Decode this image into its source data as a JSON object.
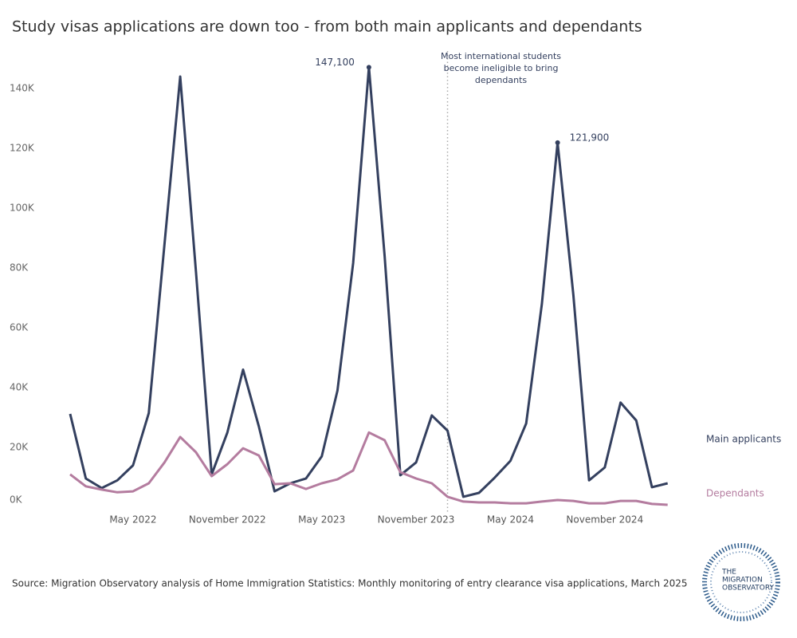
{
  "chart_data": {
    "type": "line",
    "title": "Study visas applications are down too - from both main applicants and dependants",
    "source": "Source: Migration Observatory analysis of Home Immigration Statistics: Monthly monitoring of entry clearance visa applications, March 2025",
    "logo": [
      "THE",
      "MIGRATION",
      "OBSERVATORY"
    ],
    "annotation": [
      "Most international students",
      "become ineligible to bring",
      "dependants"
    ],
    "categories": [
      null,
      null,
      null,
      null,
      "May 2022",
      null,
      null,
      null,
      null,
      null,
      "November 2022",
      null,
      null,
      null,
      null,
      null,
      "May 2023",
      null,
      null,
      null,
      null,
      null,
      "November 2023",
      null,
      null,
      null,
      null,
      null,
      "May 2024",
      null,
      null,
      null,
      null,
      null,
      "November 2024",
      null,
      null,
      null,
      null
    ],
    "ylim": [
      0,
      150
    ],
    "yticks": [
      {
        "value": 0,
        "label": "0K"
      },
      {
        "value": 20,
        "label": "20K"
      },
      {
        "value": 40,
        "label": "40K"
      },
      {
        "value": 60,
        "label": "60K"
      },
      {
        "value": 80,
        "label": "80K"
      },
      {
        "value": 100,
        "label": "100K"
      },
      {
        "value": 120,
        "label": "120K"
      },
      {
        "value": 140,
        "label": "140K"
      }
    ],
    "grid": false,
    "series": [
      {
        "name": "Main applicants",
        "color": "#34405f",
        "values": [
          31.2,
          9.6,
          6.4,
          9,
          14,
          31.5,
          88,
          144,
          79,
          11,
          25,
          46,
          27,
          5.3,
          8,
          9.6,
          17,
          39,
          81.6,
          147.1,
          84,
          10.7,
          15,
          30.7,
          25.6,
          3.5,
          4.8,
          9.9,
          15.5,
          28,
          68,
          121.9,
          71,
          9,
          13.3,
          35,
          29,
          6.7,
          8
        ],
        "value_labels": [
          null,
          null,
          null,
          null,
          null,
          null,
          null,
          null,
          null,
          null,
          null,
          null,
          null,
          null,
          null,
          null,
          null,
          null,
          null,
          "147,100",
          null,
          null,
          null,
          null,
          null,
          null,
          null,
          null,
          null,
          null,
          null,
          "121,900",
          null,
          null,
          null,
          null,
          null,
          null,
          null
        ]
      },
      {
        "name": "Dependants",
        "color": "#b47c9f",
        "values": [
          11,
          7,
          5.9,
          5,
          5.3,
          8,
          15,
          23.5,
          18.4,
          10.4,
          14.4,
          19.7,
          17.3,
          7.7,
          8,
          6.1,
          8,
          9.3,
          12.3,
          25,
          22.4,
          11.7,
          9.6,
          8,
          3.5,
          1.9,
          1.6,
          1.6,
          1.3,
          1.3,
          1.9,
          2.4,
          2.1,
          1.3,
          1.3,
          2.1,
          2.1,
          1.1,
          0.8
        ]
      }
    ]
  }
}
